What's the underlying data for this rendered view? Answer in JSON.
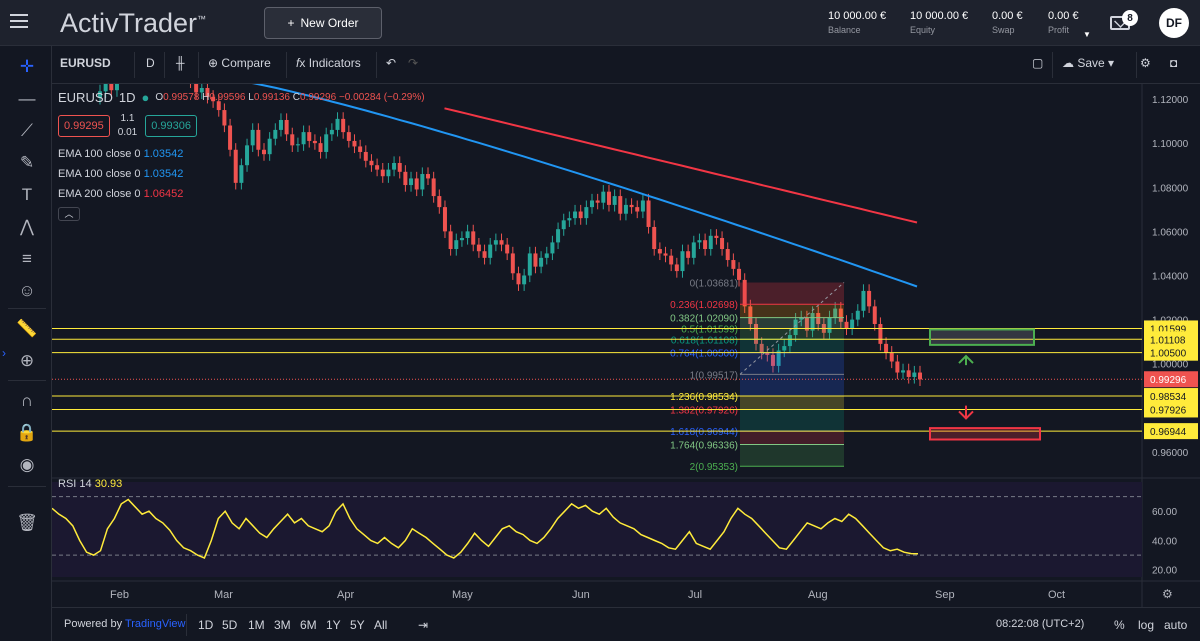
{
  "app": {
    "logo": "ActivTrader",
    "logo_tm": "™",
    "new_order": "New Order"
  },
  "account": [
    {
      "value": "10 000.00 €",
      "label": "Balance"
    },
    {
      "value": "10 000.00 €",
      "label": "Equity"
    },
    {
      "value": "0.00 €",
      "label": "Swap"
    },
    {
      "value": "0.00 €",
      "label": "Profit"
    }
  ],
  "notifications": "8",
  "user_initials": "DF",
  "toolbar": {
    "symbol": "EURUSD",
    "interval": "D",
    "compare": "Compare",
    "indicators": "Indicators",
    "save": "Save"
  },
  "legend": {
    "symbol": "EURUSD",
    "interval": "1D",
    "o_label": "O",
    "o": "0.99578",
    "h_label": "H",
    "h": "0.99596",
    "l_label": "L",
    "l": "0.99136",
    "c_label": "C",
    "c": "0.99296",
    "change": "−0.00284 (−0.29%)",
    "sell": "0.99295",
    "spread": "1.1",
    "lot": "0.01",
    "buy": "0.99306",
    "emas": [
      {
        "label": "EMA 100 close 0",
        "value": "1.03542",
        "color": "#2196f3"
      },
      {
        "label": "EMA 100 close 0",
        "value": "1.03542",
        "color": "#2196f3"
      },
      {
        "label": "EMA 200 close 0",
        "value": "1.06452",
        "color": "#f23645"
      }
    ]
  },
  "rsi": {
    "label": "RSI 14",
    "value": "30.93"
  },
  "chart_data": {
    "type": "candlestick",
    "symbol": "EURUSD",
    "interval": "1D",
    "price_axis": {
      "min": 0.95,
      "max": 1.125,
      "ticks": [
        "1.12000",
        "1.10000",
        "1.08000",
        "1.06000",
        "1.04000",
        "1.02000",
        "1.00000",
        "0.96000"
      ]
    },
    "x_ticks": [
      "Feb",
      "Mar",
      "Apr",
      "May",
      "Jun",
      "Jul",
      "Aug",
      "Sep",
      "Oct"
    ],
    "closes": [
      1.1235,
      1.1282,
      1.124,
      1.1302,
      1.1305,
      1.137,
      1.142,
      1.1415,
      1.139,
      1.136,
      1.133,
      1.1325,
      1.14,
      1.1455,
      1.134,
      1.131,
      1.128,
      1.123,
      1.125,
      1.121,
      1.119,
      1.115,
      1.108,
      1.097,
      1.082,
      1.09,
      1.099,
      1.106,
      1.097,
      1.095,
      1.102,
      1.106,
      1.1105,
      1.104,
      1.099,
      1.0995,
      1.105,
      1.101,
      1.1,
      1.096,
      1.104,
      1.106,
      1.111,
      1.105,
      1.101,
      1.0985,
      1.096,
      1.092,
      1.09,
      1.088,
      1.085,
      1.088,
      1.091,
      1.087,
      1.081,
      1.084,
      1.079,
      1.086,
      1.084,
      1.076,
      1.071,
      1.06,
      1.052,
      1.056,
      1.057,
      1.06,
      1.054,
      1.051,
      1.048,
      1.054,
      1.056,
      1.054,
      1.05,
      1.041,
      1.036,
      1.04,
      1.05,
      1.044,
      1.048,
      1.05,
      1.055,
      1.061,
      1.065,
      1.066,
      1.069,
      1.066,
      1.071,
      1.074,
      1.073,
      1.078,
      1.072,
      1.076,
      1.068,
      1.072,
      1.071,
      1.069,
      1.074,
      1.062,
      1.052,
      1.05,
      1.049,
      1.045,
      1.042,
      1.051,
      1.048,
      1.055,
      1.056,
      1.052,
      1.058,
      1.057,
      1.052,
      1.047,
      1.043,
      1.038,
      1.026,
      1.018,
      1.009,
      1.005,
      1.004,
      0.999,
      1.006,
      1.008,
      1.013,
      1.02,
      1.021,
      1.015,
      1.023,
      1.018,
      1.014,
      1.021,
      1.025,
      1.019,
      1.016,
      1.02,
      1.024,
      1.033,
      1.026,
      1.018,
      1.009,
      1.005,
      1.001,
      0.996,
      0.997,
      0.994,
      0.996,
      0.9929
    ],
    "ema100_end": 1.03542,
    "ema200_end": 1.06452,
    "last_price": 0.99296,
    "fib_levels": [
      {
        "ratio": "0.236",
        "value": "1.02698",
        "color": "#f23645"
      },
      {
        "ratio": "0.382",
        "value": "1.02090",
        "color": "#81c784"
      },
      {
        "ratio": "0.5",
        "value": "1.01599",
        "color": "#4caf50"
      },
      {
        "ratio": "0.618",
        "value": "1.01108",
        "color": "#089981"
      },
      {
        "ratio": "0.764",
        "value": "1.00500",
        "color": "#2962ff"
      },
      {
        "ratio": "1",
        "value": "0.99517",
        "color": "#787b86"
      },
      {
        "ratio": "1.236",
        "value": "0.98534",
        "color": "#ffeb3b"
      },
      {
        "ratio": "1.382",
        "value": "0.97926",
        "color": "#f23645"
      },
      {
        "ratio": "1.618",
        "value": "0.96944",
        "color": "#2962ff"
      },
      {
        "ratio": "1.764",
        "value": "0.96336",
        "color": "#81c784"
      },
      {
        "ratio": "2",
        "value": "0.95353",
        "color": "#4caf50"
      }
    ],
    "fib_top": "1.03681",
    "hlines": [
      {
        "value": "1.01599"
      },
      {
        "value": "1.01108"
      },
      {
        "value": "1.00500"
      },
      {
        "value": "0.98534"
      },
      {
        "value": "0.97926"
      },
      {
        "value": "0.96944"
      }
    ],
    "rsi_ticks": [
      "60.00",
      "40.00",
      "20.00"
    ],
    "rsi_values": [
      62,
      58,
      55,
      50,
      40,
      32,
      30,
      33,
      48,
      55,
      65,
      68,
      63,
      58,
      60,
      55,
      52,
      47,
      40,
      35,
      33,
      30,
      28,
      40,
      55,
      60,
      52,
      48,
      55,
      50,
      45,
      42,
      48,
      53,
      58,
      52,
      55,
      50,
      48,
      46,
      50,
      60,
      65,
      55,
      48,
      44,
      40,
      38,
      42,
      38,
      35,
      40,
      48,
      45,
      42,
      38,
      34,
      30,
      28,
      32,
      38,
      45,
      40,
      36,
      42,
      48,
      50,
      46,
      44,
      40,
      38,
      42,
      48,
      55,
      60,
      65,
      62,
      64,
      60,
      58,
      62,
      56,
      52,
      50,
      48,
      44,
      42,
      40,
      38,
      35,
      34,
      40,
      46,
      38,
      36,
      34,
      40,
      46,
      55,
      62,
      58,
      55,
      50,
      45,
      40,
      35,
      34,
      40,
      46,
      52,
      50,
      48,
      52,
      55,
      53,
      58,
      55,
      50,
      45,
      40,
      35,
      33,
      34,
      32,
      31,
      30.93
    ]
  },
  "bottom": {
    "powered": "Powered by",
    "tv": "TradingView",
    "ranges": [
      "1D",
      "5D",
      "1M",
      "3M",
      "6M",
      "1Y",
      "5Y",
      "All"
    ],
    "time": "08:22:08 (UTC+2)",
    "pct": "%",
    "log": "log",
    "auto": "auto"
  }
}
